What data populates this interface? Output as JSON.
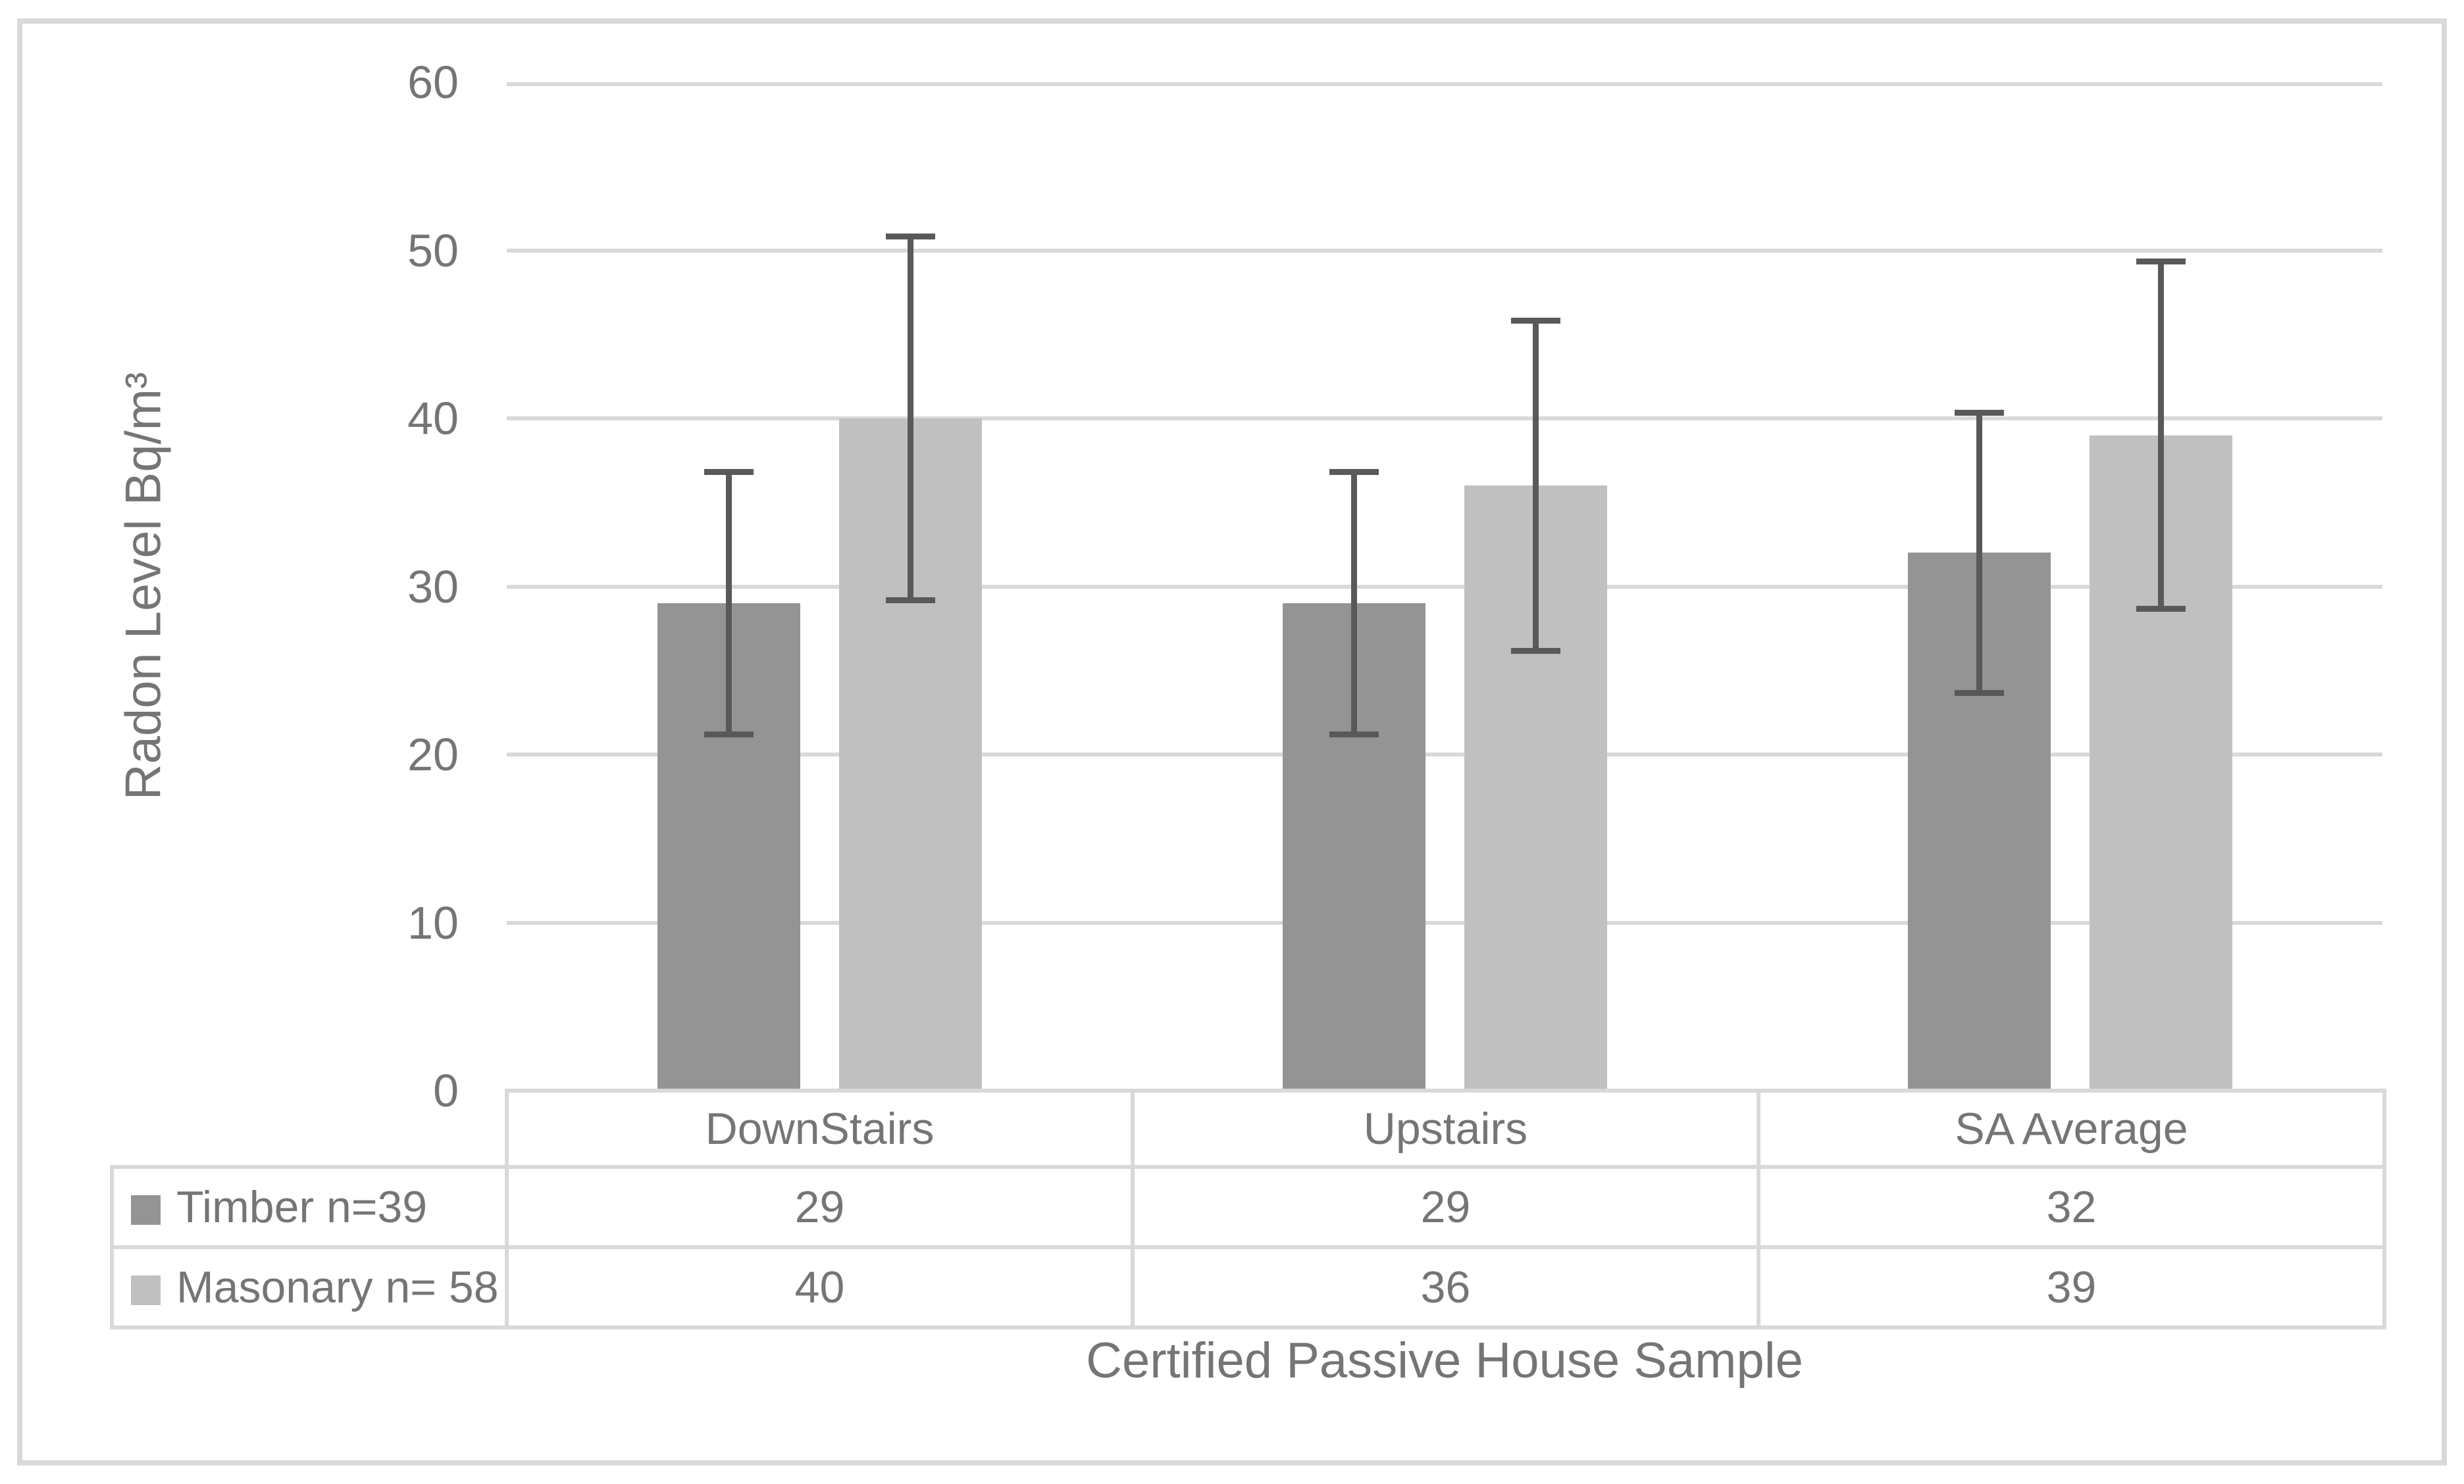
{
  "chart_data": {
    "type": "bar",
    "title": "",
    "categories": [
      "DownStairs",
      "Upstairs",
      "SA Average"
    ],
    "series": [
      {
        "name": "Timber n=39",
        "color": "#949494",
        "values": [
          29,
          29,
          32
        ],
        "error_low": [
          21,
          21,
          23.5
        ],
        "error_high": [
          37,
          37,
          40.5
        ]
      },
      {
        "name": "Masonary n= 58",
        "color": "#c0c0c0",
        "values": [
          40,
          36,
          39
        ],
        "error_low": [
          29,
          26,
          28.5
        ],
        "error_high": [
          51,
          46,
          49.5
        ]
      }
    ],
    "xlabel": "Certified Passive House Sample",
    "ylabel": "Radon Level Bq/m³",
    "ylim": [
      0,
      60
    ],
    "yticks": [
      60,
      50,
      40,
      30,
      20,
      10,
      0
    ],
    "grid": true,
    "error_bars": true,
    "legend_position": "data-table-left"
  },
  "colors": {
    "error_bar": "#595959",
    "gridline": "#d9d9d9",
    "table_border": "#d9d9d9",
    "text": "#757575",
    "background": "#ffffff"
  }
}
